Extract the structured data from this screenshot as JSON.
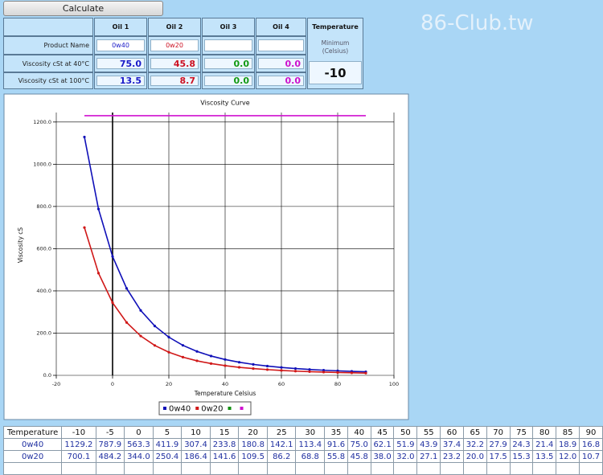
{
  "button": "Calculate",
  "watermark": "86-Club.tw",
  "input_table": {
    "headers": [
      "Oil 1",
      "Oil 2",
      "Oil 3",
      "Oil 4"
    ],
    "product_label": "Product Name",
    "product_names": [
      "0w40",
      "0w20"
    ],
    "rows": [
      {
        "label": "Viscosity cSt at 40°C",
        "values": [
          "75.0",
          "45.8",
          "0.0",
          "0.0"
        ]
      },
      {
        "label": "Viscosity cSt at 100°C",
        "values": [
          "13.5",
          "8.7",
          "0.0",
          "0.0"
        ]
      }
    ]
  },
  "temperature_panel": {
    "title": "Temperature",
    "caption": "Minimum (Celsius)",
    "value": "-10"
  },
  "chart_data": {
    "type": "line",
    "title": "Viscosity Curve",
    "x_label": "Temperature Celsius",
    "y_label": "Viscosity cS",
    "x": [
      -10,
      -5,
      0,
      5,
      10,
      15,
      20,
      25,
      30,
      35,
      40,
      45,
      50,
      55,
      60,
      65,
      70,
      75,
      80,
      85,
      90
    ],
    "series": [
      {
        "name": "0w40",
        "color": "#1010b8",
        "values": [
          1129.2,
          787.9,
          563.3,
          411.9,
          307.4,
          233.8,
          180.8,
          142.1,
          113.4,
          91.6,
          75.0,
          62.1,
          51.9,
          43.9,
          37.4,
          32.2,
          27.9,
          24.3,
          21.4,
          18.9,
          16.8
        ],
        "value_labels": [
          "1129.2",
          "787.9",
          "563.3",
          "411.9",
          "307.4",
          "233.8",
          "180.8",
          "142.1",
          "113.4",
          "91.6",
          "75.0",
          "62.1",
          "51.9",
          "43.9",
          "37.4",
          "32.2",
          "27.9",
          "24.3",
          "21.4",
          "18.9",
          "16.8"
        ]
      },
      {
        "name": "0w20",
        "color": "#d01818",
        "values": [
          700.1,
          484.2,
          344.0,
          250.4,
          186.4,
          141.6,
          109.5,
          86.2,
          68.8,
          55.8,
          45.8,
          38.0,
          32.0,
          27.1,
          23.2,
          20.0,
          17.5,
          15.3,
          13.5,
          12.0,
          10.7
        ],
        "value_labels": [
          "700.1",
          "484.2",
          "344.0",
          "250.4",
          "186.4",
          "141.6",
          "109.5",
          "86.2",
          "68.8",
          "55.8",
          "45.8",
          "38.0",
          "32.0",
          "27.1",
          "23.2",
          "20.0",
          "17.5",
          "15.3",
          "13.5",
          "12.0",
          "10.7"
        ]
      },
      {
        "color": "#109010",
        "values": [
          null,
          null,
          null,
          null,
          null,
          null,
          null,
          null,
          null,
          null,
          null,
          null,
          null,
          null,
          null,
          null,
          null,
          null,
          null,
          null,
          null
        ]
      },
      {
        "color": "#d010d0",
        "values": [
          1230,
          1230,
          1230,
          1230,
          1230,
          1230,
          1230,
          1230,
          1230,
          1230,
          1230,
          1230,
          1230,
          1230,
          1230,
          1230,
          1230,
          1230,
          1230,
          1230,
          1230
        ]
      }
    ],
    "xlim": [
      -20,
      100
    ],
    "xticks": [
      -20,
      0,
      20,
      40,
      60,
      80,
      100
    ],
    "ylim": [
      0,
      1245
    ],
    "yticks": [
      {
        "value": 0,
        "label": "0.0"
      },
      {
        "value": 200,
        "label": "200.0"
      },
      {
        "value": 400,
        "label": "400.0"
      },
      {
        "value": 600,
        "label": "600.0"
      },
      {
        "value": 800,
        "label": "800.0"
      },
      {
        "value": 1000,
        "label": "1000.0"
      },
      {
        "value": 1200,
        "label": "1200.0"
      }
    ],
    "grid": true,
    "legend": "bottom"
  },
  "data_table": {
    "header": "Temperature"
  }
}
